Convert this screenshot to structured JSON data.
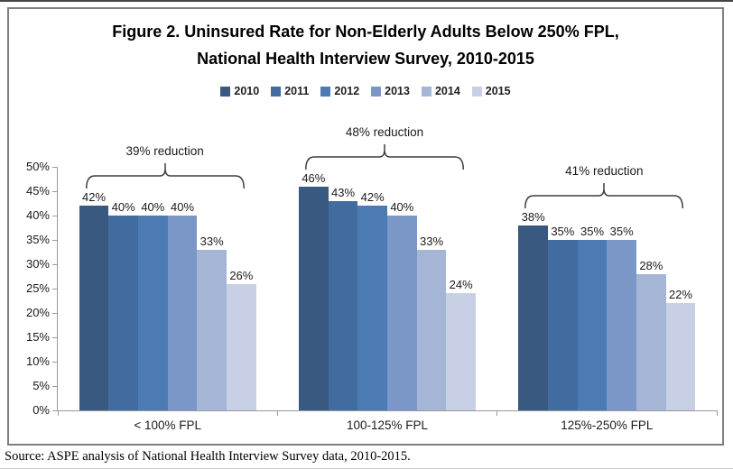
{
  "title": {
    "line1": "Figure 2. Uninsured Rate for Non-Elderly Adults Below 250% FPL,",
    "line2": "National Health Interview Survey, 2010-2015"
  },
  "source": "Source: ASPE analysis of National Health Interview Survey data, 2010-2015.",
  "chart_data": {
    "type": "bar",
    "title": "Figure 2. Uninsured Rate for Non-Elderly Adults Below 250% FPL, National Health Interview Survey, 2010-2015",
    "categories": [
      "< 100% FPL",
      "100-125% FPL",
      "125%-250% FPL"
    ],
    "series": [
      {
        "name": "2010",
        "color": "#395980",
        "values": [
          42,
          46,
          38
        ]
      },
      {
        "name": "2011",
        "color": "#426C9F",
        "values": [
          40,
          43,
          35
        ]
      },
      {
        "name": "2012",
        "color": "#4C7BB4",
        "values": [
          40,
          42,
          35
        ]
      },
      {
        "name": "2013",
        "color": "#7A97C8",
        "values": [
          40,
          40,
          35
        ]
      },
      {
        "name": "2014",
        "color": "#A5B5D5",
        "values": [
          33,
          33,
          28
        ]
      },
      {
        "name": "2015",
        "color": "#C7D0E4",
        "values": [
          26,
          24,
          22
        ]
      }
    ],
    "data_label_suffix": "%",
    "annotations": [
      {
        "category": "< 100% FPL",
        "label": "39% reduction"
      },
      {
        "category": "100-125% FPL",
        "label": "48% reduction"
      },
      {
        "category": "125%-250% FPL",
        "label": "41% reduction"
      }
    ],
    "ylim": [
      0,
      50
    ],
    "ytick_step": 5,
    "ytick_suffix": "%",
    "grid": false,
    "legend_position": "top"
  },
  "colors": {
    "axis": "#999999",
    "frame_border": "#7F7F7F",
    "bracket": "#3F3F3F",
    "text": "#1A1A1A"
  }
}
